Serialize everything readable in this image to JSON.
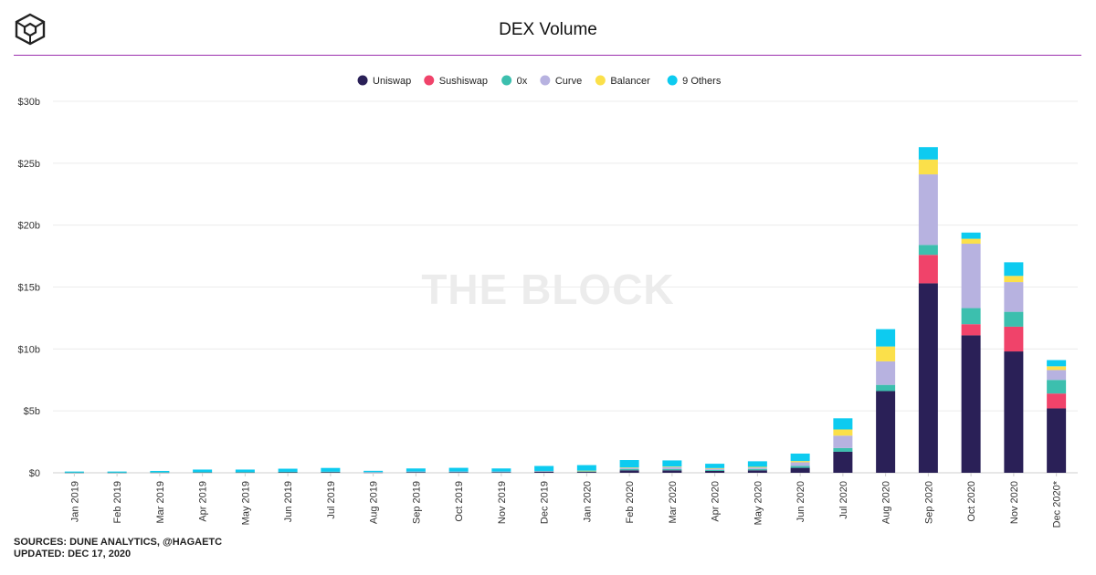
{
  "header": {
    "title": "DEX Volume"
  },
  "watermark": "THE BLOCK",
  "footer": {
    "sources": "SOURCES: DUNE ANALYTICS, @HAGAETC",
    "updated": "UPDATED: DEC 17, 2020"
  },
  "chart_data": {
    "type": "bar",
    "stacked": true,
    "title": "DEX Volume",
    "xlabel": "",
    "ylabel": "",
    "ylim": [
      0,
      30
    ],
    "yticks": [
      0,
      5,
      10,
      15,
      20,
      25,
      30
    ],
    "ytick_labels": [
      "$0",
      "$5b",
      "$10b",
      "$15b",
      "$20b",
      "$25b",
      "$30b"
    ],
    "legend_position": "top-center",
    "categories": [
      "Jan 2019",
      "Feb 2019",
      "Mar 2019",
      "Apr 2019",
      "May 2019",
      "Jun 2019",
      "Jul 2019",
      "Aug 2019",
      "Sep 2019",
      "Oct 2019",
      "Nov 2019",
      "Dec 2019",
      "Jan 2020",
      "Feb 2020",
      "Mar 2020",
      "Apr 2020",
      "May 2020",
      "Jun 2020",
      "Jul 2020",
      "Aug 2020",
      "Sep 2020",
      "Oct 2020",
      "Nov 2020",
      "Dec 2020*"
    ],
    "series": [
      {
        "name": "Uniswap",
        "color": "#2a2057",
        "values": [
          0.02,
          0.02,
          0.03,
          0.04,
          0.04,
          0.05,
          0.06,
          0.03,
          0.05,
          0.05,
          0.05,
          0.08,
          0.07,
          0.2,
          0.2,
          0.15,
          0.2,
          0.4,
          1.7,
          6.6,
          15.3,
          11.1,
          9.8,
          5.2
        ]
      },
      {
        "name": "Sushiswap",
        "color": "#f0436a",
        "values": [
          0,
          0,
          0,
          0,
          0,
          0,
          0,
          0,
          0,
          0,
          0,
          0,
          0,
          0,
          0,
          0,
          0,
          0,
          0,
          0,
          2.3,
          0.9,
          2.0,
          1.2
        ]
      },
      {
        "name": "0x",
        "color": "#3cbfae",
        "values": [
          0.01,
          0.01,
          0.02,
          0.02,
          0.02,
          0.03,
          0.03,
          0.02,
          0.03,
          0.03,
          0.03,
          0.04,
          0.04,
          0.1,
          0.1,
          0.08,
          0.1,
          0.15,
          0.3,
          0.5,
          0.8,
          1.3,
          1.2,
          1.1
        ]
      },
      {
        "name": "Curve",
        "color": "#b7b2e0",
        "values": [
          0,
          0,
          0,
          0,
          0,
          0,
          0,
          0.01,
          0.02,
          0.02,
          0.02,
          0.03,
          0.05,
          0.1,
          0.15,
          0.1,
          0.12,
          0.3,
          1.0,
          1.9,
          5.7,
          5.2,
          2.4,
          0.8
        ]
      },
      {
        "name": "Balancer",
        "color": "#fbe04a",
        "values": [
          0,
          0,
          0,
          0,
          0,
          0,
          0,
          0,
          0,
          0,
          0,
          0,
          0.01,
          0.03,
          0.05,
          0.05,
          0.06,
          0.1,
          0.5,
          1.2,
          1.2,
          0.4,
          0.5,
          0.3
        ]
      },
      {
        "name": "9 Others",
        "color": "#0dcbf0",
        "values": [
          0.07,
          0.07,
          0.1,
          0.2,
          0.2,
          0.25,
          0.3,
          0.1,
          0.25,
          0.3,
          0.25,
          0.4,
          0.45,
          0.6,
          0.5,
          0.35,
          0.45,
          0.6,
          0.9,
          1.4,
          1.0,
          0.5,
          1.1,
          0.5
        ]
      }
    ]
  }
}
